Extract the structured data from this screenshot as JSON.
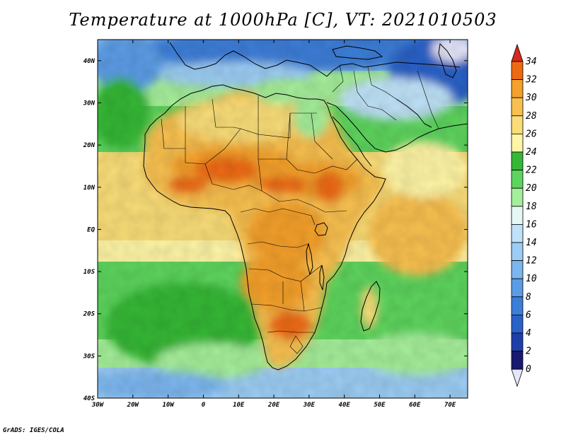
{
  "title": "Temperature at 1000hPa [C], VT: 2021010503",
  "credit": "GrADS: IGES/COLA",
  "map": {
    "lon_range": [
      -30,
      75
    ],
    "lat_range": [
      -40,
      45
    ],
    "lon_ticks": [
      {
        "value": -30,
        "label": "30W"
      },
      {
        "value": -20,
        "label": "20W"
      },
      {
        "value": -10,
        "label": "10W"
      },
      {
        "value": 0,
        "label": "0"
      },
      {
        "value": 10,
        "label": "10E"
      },
      {
        "value": 20,
        "label": "20E"
      },
      {
        "value": 30,
        "label": "30E"
      },
      {
        "value": 40,
        "label": "40E"
      },
      {
        "value": 50,
        "label": "50E"
      },
      {
        "value": 60,
        "label": "60E"
      },
      {
        "value": 70,
        "label": "70E"
      }
    ],
    "lat_ticks": [
      {
        "value": 40,
        "label": "40N"
      },
      {
        "value": 30,
        "label": "30N"
      },
      {
        "value": 20,
        "label": "20N"
      },
      {
        "value": 10,
        "label": "10N"
      },
      {
        "value": 0,
        "label": "EQ"
      },
      {
        "value": -10,
        "label": "10S"
      },
      {
        "value": -20,
        "label": "20S"
      },
      {
        "value": -30,
        "label": "30S"
      },
      {
        "value": -40,
        "label": "40S"
      }
    ]
  },
  "colorbar": {
    "labels": [
      "34",
      "32",
      "30",
      "28",
      "26",
      "24",
      "22",
      "20",
      "18",
      "16",
      "14",
      "12",
      "10",
      "8",
      "6",
      "4",
      "2",
      "0"
    ],
    "colors": {
      "lt0": "#e6e6fa",
      "0-2": "#191970",
      "2-4": "#1f3fa8",
      "4-6": "#2a62c8",
      "6-8": "#3c7ed8",
      "8-10": "#5b9ce6",
      "10-12": "#7cb6ee",
      "12-14": "#9ccdf4",
      "14-16": "#bfe2f8",
      "16-18": "#e4f7f4",
      "18-20": "#a5ee9a",
      "20-22": "#5dd45d",
      "22-24": "#36b736",
      "24-26": "#fff5a6",
      "26-28": "#fadd78",
      "28-30": "#f8c050",
      "30-32": "#f4a02c",
      "32-34": "#ee6a12",
      "gt34": "#d8281a"
    }
  }
}
